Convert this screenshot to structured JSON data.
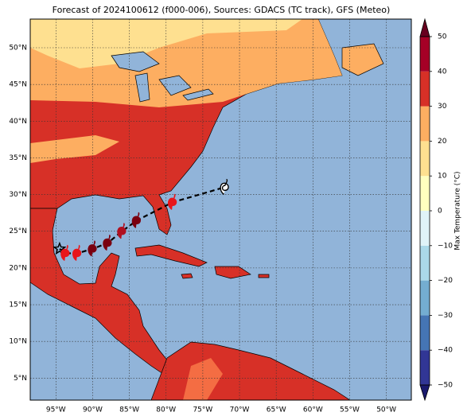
{
  "chart_data": {
    "type": "map",
    "title": "Forecast of 2024100612 (f000-006), Sources: GDACS (TC track), GFS (Meteo)",
    "xlim": [
      -98.5,
      -46.6
    ],
    "ylim": [
      2,
      53.9
    ],
    "xticks": [
      {
        "value": -95,
        "label": "95°W"
      },
      {
        "value": -90,
        "label": "90°W"
      },
      {
        "value": -85,
        "label": "85°W"
      },
      {
        "value": -80,
        "label": "80°W"
      },
      {
        "value": -75,
        "label": "75°W"
      },
      {
        "value": -70,
        "label": "70°W"
      },
      {
        "value": -65,
        "label": "65°W"
      },
      {
        "value": -60,
        "label": "60°W"
      },
      {
        "value": -55,
        "label": "55°W"
      },
      {
        "value": -50,
        "label": "50°W"
      }
    ],
    "yticks": [
      {
        "value": 5,
        "label": "5°N"
      },
      {
        "value": 10,
        "label": "10°N"
      },
      {
        "value": 15,
        "label": "15°N"
      },
      {
        "value": 20,
        "label": "20°N"
      },
      {
        "value": 25,
        "label": "25°N"
      },
      {
        "value": 30,
        "label": "30°N"
      },
      {
        "value": 35,
        "label": "35°N"
      },
      {
        "value": 40,
        "label": "40°N"
      },
      {
        "value": 45,
        "label": "45°N"
      },
      {
        "value": 50,
        "label": "50°N"
      }
    ],
    "grid": true,
    "track": {
      "lon": [
        -94.5,
        -93.7,
        -92.1,
        -90.0,
        -87.95,
        -86.0,
        -84.0,
        -79.1,
        -72.0
      ],
      "lat": [
        22.6,
        22.0,
        22.0,
        22.6,
        23.4,
        25.0,
        26.46,
        28.95,
        31.0
      ],
      "colors": [
        "#000000",
        "#e8161b",
        "#e8161b",
        "#7a0010",
        "#7a0010",
        "#b01020",
        "#7a0010",
        "#e8161b",
        "#ffffff"
      ]
    },
    "colorbar": {
      "label": "Max Temperature (°C)",
      "lim": [
        -50,
        50
      ],
      "ticks": [
        {
          "value": -50,
          "label": "−50"
        },
        {
          "value": -40,
          "label": "−40"
        },
        {
          "value": -30,
          "label": "−30"
        },
        {
          "value": -20,
          "label": "−20"
        },
        {
          "value": -10,
          "label": "−10"
        },
        0,
        10,
        20,
        30,
        40,
        50
      ],
      "colors": [
        "#313695",
        "#4575b4",
        "#74add1",
        "#abd9e9",
        "#e0f3f8",
        "#ffffbf",
        "#fee090",
        "#fdae61",
        "#d73027",
        "#a50026"
      ],
      "extend_colors": [
        "#1a1a6e",
        "#67001f"
      ]
    }
  }
}
